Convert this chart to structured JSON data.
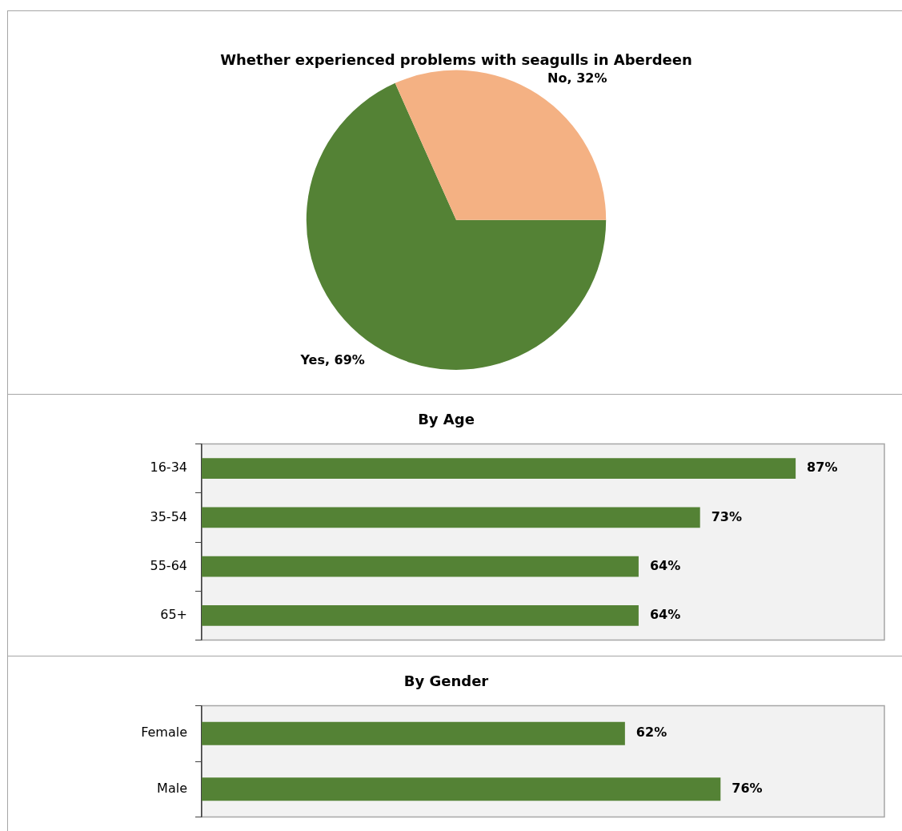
{
  "chart_data": [
    {
      "type": "pie",
      "title": "Whether experienced problems with seagulls in Aberdeen",
      "categories": [
        "Yes",
        "No"
      ],
      "values": [
        69,
        32
      ],
      "colors": [
        "#548235",
        "#f4b183"
      ],
      "value_labels": [
        "69%",
        "32%"
      ]
    },
    {
      "type": "bar",
      "orientation": "horizontal",
      "title": "By Age",
      "categories": [
        "16-34",
        "35-54",
        "55-64",
        "65+"
      ],
      "values": [
        87,
        73,
        64,
        64
      ],
      "color": "#548235",
      "value_labels": [
        "87%",
        "73%",
        "64%",
        "64%"
      ],
      "xlim": [
        0,
        100
      ],
      "tick_labels": "y"
    },
    {
      "type": "bar",
      "orientation": "horizontal",
      "title": "By Gender",
      "categories": [
        "Female",
        "Male"
      ],
      "values": [
        62,
        76
      ],
      "color": "#548235",
      "value_labels": [
        "62%",
        "76%"
      ],
      "xlim": [
        0,
        100
      ],
      "tick_labels": "y"
    }
  ]
}
